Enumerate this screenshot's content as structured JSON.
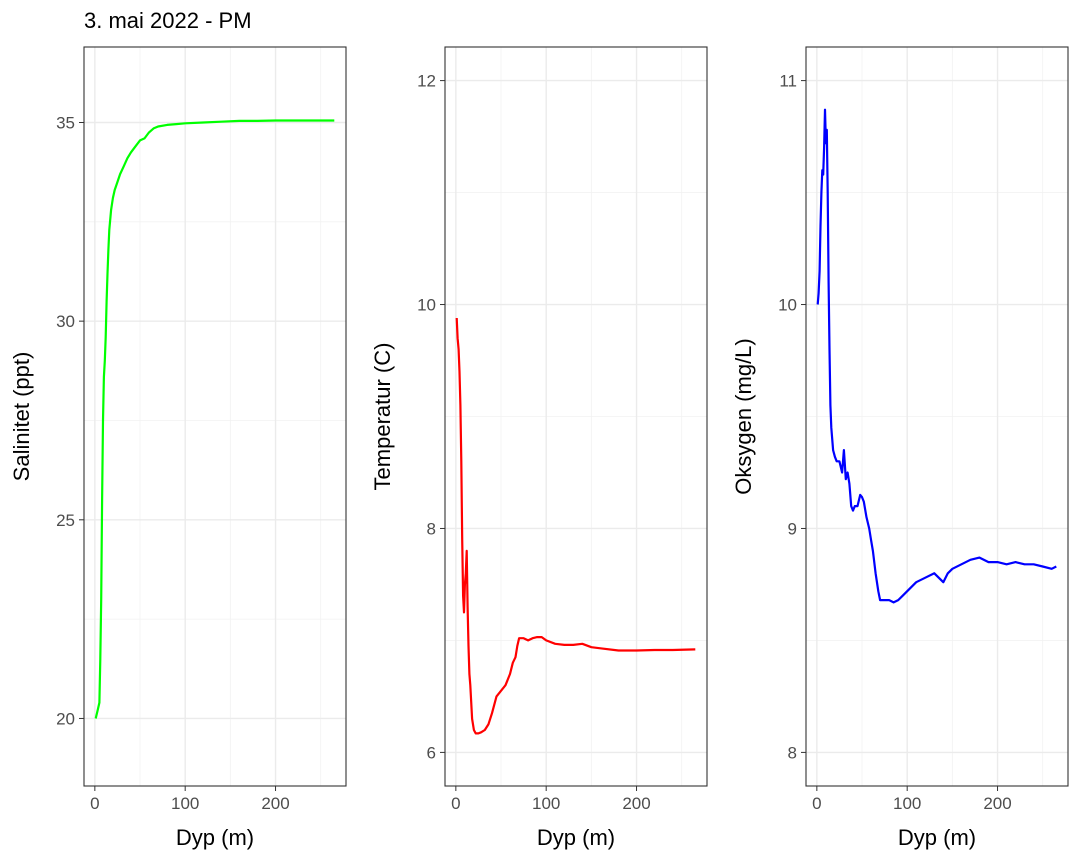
{
  "title": "3. mai 2022 - PM",
  "chart_data": [
    {
      "type": "line",
      "xlabel": "Dyp (m)",
      "ylabel": "Salinitet (ppt)",
      "xlim": [
        -12,
        278
      ],
      "ylim": [
        18.3,
        36.9
      ],
      "xticks": [
        0,
        100,
        200
      ],
      "yticks": [
        20,
        25,
        30,
        35
      ],
      "grid": true,
      "color": "#00ff00",
      "series": [
        {
          "x": [
            1,
            3,
            5,
            6,
            7,
            8,
            9,
            10,
            11,
            12,
            13,
            14,
            15,
            16,
            18,
            20,
            22,
            25,
            28,
            32,
            36,
            40,
            45,
            50,
            55,
            60,
            65,
            70,
            80,
            90,
            100,
            120,
            140,
            160,
            180,
            200,
            220,
            240,
            265
          ],
          "y": [
            20.0,
            20.2,
            20.4,
            21.5,
            23.0,
            25.5,
            27.5,
            28.6,
            29.0,
            29.6,
            30.5,
            31.2,
            31.8,
            32.3,
            32.8,
            33.1,
            33.3,
            33.5,
            33.7,
            33.9,
            34.1,
            34.25,
            34.4,
            34.55,
            34.6,
            34.75,
            34.85,
            34.9,
            34.94,
            34.96,
            34.98,
            35.0,
            35.02,
            35.04,
            35.04,
            35.05,
            35.05,
            35.05,
            35.05
          ]
        }
      ]
    },
    {
      "type": "line",
      "xlabel": "Dyp (m)",
      "ylabel": "Temperatur (C)",
      "xlim": [
        -12,
        278
      ],
      "ylim": [
        5.7,
        12.3
      ],
      "xticks": [
        0,
        100,
        200
      ],
      "yticks": [
        6,
        8,
        10,
        12
      ],
      "grid": true,
      "color": "#ff0000",
      "series": [
        {
          "x": [
            1,
            2,
            3,
            4,
            5,
            6,
            7,
            8,
            9,
            10,
            11,
            12,
            13,
            14,
            15,
            16,
            17,
            18,
            20,
            22,
            25,
            28,
            32,
            36,
            40,
            45,
            50,
            55,
            60,
            63,
            66,
            68,
            70,
            75,
            80,
            85,
            90,
            95,
            100,
            110,
            120,
            130,
            140,
            150,
            160,
            180,
            200,
            220,
            240,
            265
          ],
          "y": [
            9.88,
            9.7,
            9.6,
            9.4,
            9.1,
            8.6,
            7.9,
            7.4,
            7.25,
            7.5,
            7.6,
            7.8,
            7.3,
            6.95,
            6.7,
            6.6,
            6.45,
            6.3,
            6.2,
            6.17,
            6.17,
            6.18,
            6.2,
            6.25,
            6.35,
            6.5,
            6.55,
            6.6,
            6.7,
            6.8,
            6.85,
            6.95,
            7.02,
            7.02,
            7.0,
            7.02,
            7.03,
            7.03,
            7.0,
            6.97,
            6.96,
            6.96,
            6.97,
            6.94,
            6.93,
            6.91,
            6.91,
            6.915,
            6.915,
            6.92
          ]
        }
      ]
    },
    {
      "type": "line",
      "xlabel": "Dyp (m)",
      "ylabel": "Oksygen (mg/L)",
      "xlim": [
        -12,
        278
      ],
      "ylim": [
        7.85,
        11.15
      ],
      "xticks": [
        0,
        100,
        200
      ],
      "yticks": [
        8,
        9,
        10,
        11
      ],
      "grid": true,
      "color": "#0000ff",
      "series": [
        {
          "x": [
            1,
            2,
            3,
            4,
            5,
            6,
            7,
            8,
            9,
            10,
            11,
            12,
            13,
            14,
            15,
            16,
            17,
            18,
            20,
            22,
            25,
            28,
            30,
            32,
            34,
            36,
            38,
            40,
            42,
            45,
            48,
            50,
            52,
            55,
            58,
            60,
            62,
            65,
            68,
            70,
            75,
            80,
            85,
            90,
            95,
            100,
            110,
            120,
            130,
            140,
            145,
            150,
            160,
            170,
            180,
            190,
            200,
            210,
            220,
            230,
            240,
            250,
            260,
            265
          ],
          "y": [
            10.0,
            10.05,
            10.15,
            10.35,
            10.5,
            10.6,
            10.58,
            10.7,
            10.87,
            10.72,
            10.78,
            10.5,
            10.1,
            9.8,
            9.55,
            9.45,
            9.4,
            9.35,
            9.32,
            9.3,
            9.3,
            9.25,
            9.35,
            9.22,
            9.25,
            9.2,
            9.1,
            9.08,
            9.1,
            9.1,
            9.15,
            9.14,
            9.12,
            9.05,
            9.0,
            8.95,
            8.9,
            8.8,
            8.72,
            8.68,
            8.68,
            8.68,
            8.67,
            8.68,
            8.7,
            8.72,
            8.76,
            8.78,
            8.8,
            8.76,
            8.8,
            8.82,
            8.84,
            8.86,
            8.87,
            8.85,
            8.85,
            8.84,
            8.85,
            8.84,
            8.84,
            8.83,
            8.82,
            8.83
          ]
        }
      ]
    }
  ]
}
